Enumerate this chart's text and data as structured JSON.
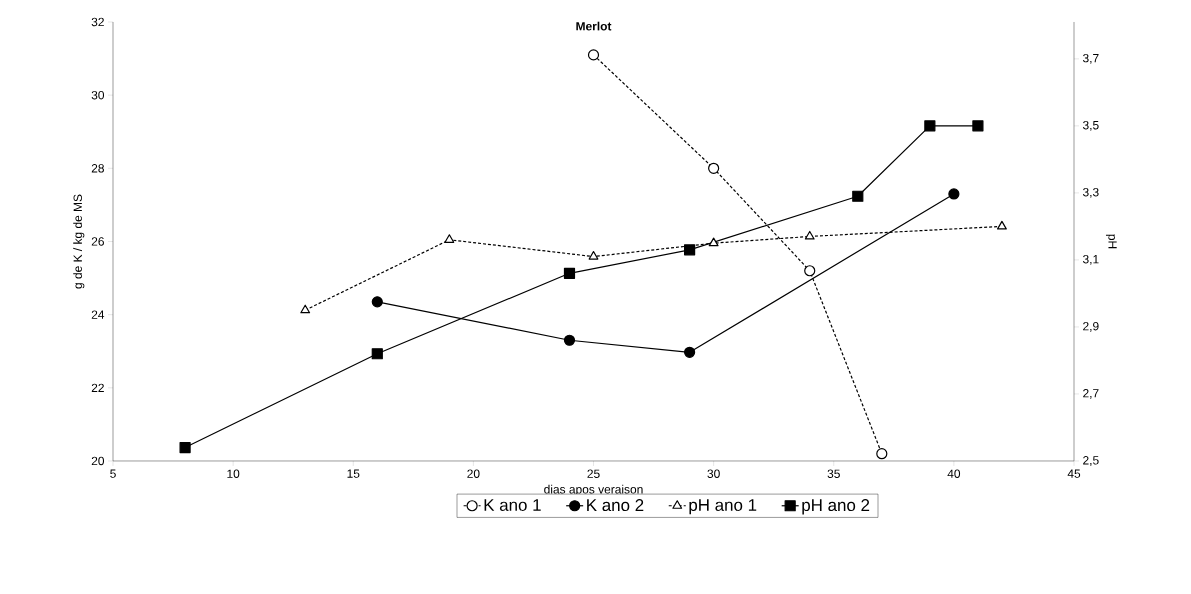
{
  "chart_data": {
    "type": "line",
    "title": "Merlot",
    "xlabel": "dias apos veraison",
    "ylabel": "g de K / kg de MS",
    "y2label": "pH",
    "xlim": [
      5,
      45
    ],
    "xticks": [
      5,
      10,
      15,
      20,
      25,
      30,
      35,
      40,
      45
    ],
    "ylim": [
      20,
      32
    ],
    "yticks": [
      20,
      22,
      24,
      26,
      28,
      30,
      32
    ],
    "y2lim": [
      2.5,
      3.81
    ],
    "y2ticks": [
      {
        "value": 2.5,
        "label": "2,5"
      },
      {
        "value": 2.7,
        "label": "2,7"
      },
      {
        "value": 2.9,
        "label": "2,9"
      },
      {
        "value": 3.1,
        "label": "3,1"
      },
      {
        "value": 3.3,
        "label": "3,3"
      },
      {
        "value": 3.5,
        "label": "3,5"
      },
      {
        "value": 3.7,
        "label": "3,7"
      }
    ],
    "legend": "bottom",
    "series": [
      {
        "name": "K ano 1",
        "color": "#000000",
        "marker": "circle",
        "line_style": "dotted",
        "x": [
          25,
          30,
          34,
          37
        ],
        "values": [
          31.1,
          28.0,
          25.2,
          20.2
        ]
      },
      {
        "name": "K ano 2",
        "color": "#000000",
        "marker": "circle",
        "line_style": "solid",
        "x": [
          16,
          24,
          29,
          40
        ],
        "values": [
          24.35,
          23.3,
          22.97,
          27.3
        ]
      },
      {
        "name": "pH ano 1",
        "color": "#000000",
        "marker": "triangle",
        "line_style": "dotted",
        "axis": "y2",
        "x": [
          13,
          19,
          25,
          30,
          34,
          42
        ],
        "values": [
          2.95,
          3.16,
          3.11,
          3.15,
          3.17,
          3.2
        ]
      },
      {
        "name": "pH ano 2",
        "color": "#000000",
        "marker": "square",
        "line_style": "solid",
        "axis": "y2",
        "x": [
          8,
          16,
          24,
          29,
          36,
          39,
          41
        ],
        "values": [
          2.54,
          2.82,
          3.06,
          3.13,
          3.29,
          3.5,
          3.5
        ]
      }
    ]
  }
}
